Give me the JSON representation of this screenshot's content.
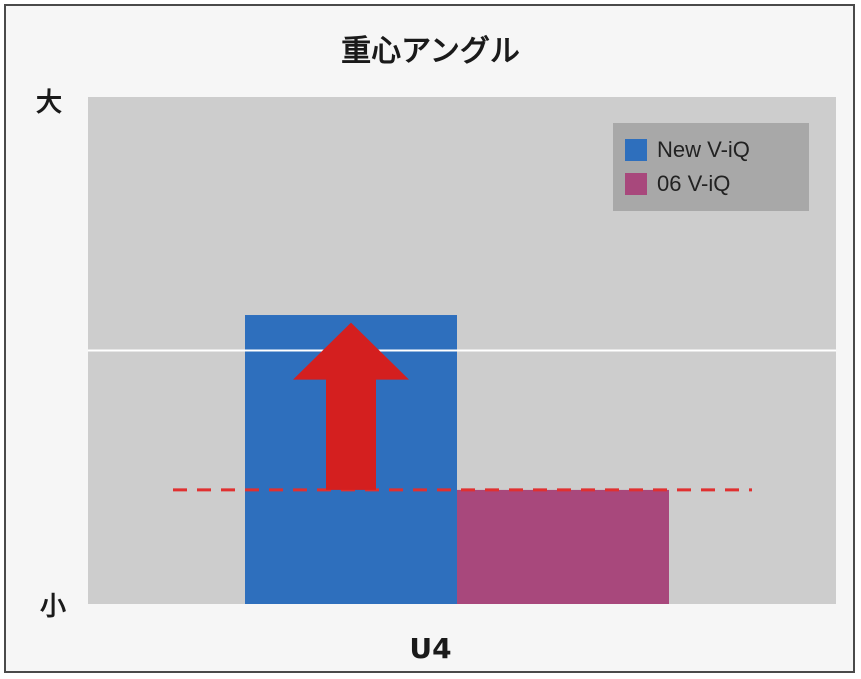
{
  "chart_data": {
    "type": "bar",
    "title": "重心アングル",
    "xlabel": "",
    "ylabel": "",
    "y_axis_top_label": "大",
    "y_axis_bottom_label": "小",
    "categories": [
      "U4"
    ],
    "ylim": [
      0,
      100
    ],
    "series": [
      {
        "name": "New V-iQ",
        "values": [
          57
        ],
        "color": "#2e6fbd"
      },
      {
        "name": "06 V-iQ",
        "values": [
          22.5
        ],
        "color": "#a8487c"
      }
    ],
    "reference_lines": [
      {
        "style": "solid",
        "color": "#ffffff",
        "value": 50
      },
      {
        "style": "dashed",
        "color": "#e03030",
        "value": 22.5
      }
    ],
    "annotations": [
      {
        "type": "arrow",
        "direction": "up",
        "color": "#d41f1f",
        "from": 22.5,
        "to": 55.5
      }
    ],
    "grid": false,
    "legend_position": "top-right",
    "plot_background": "#cdcdcd"
  }
}
